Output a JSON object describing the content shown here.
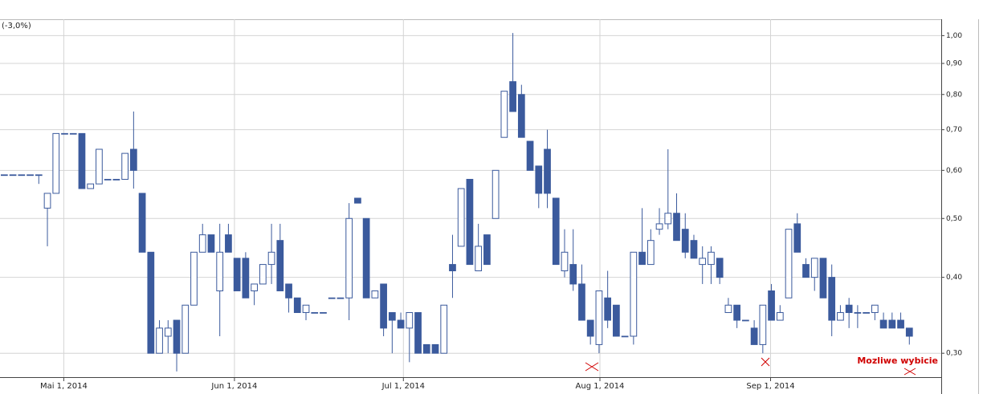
{
  "chart_data": {
    "type": "candlestick",
    "subtitle": "(-3,0%)",
    "annotation": "Mozliwe wybicie",
    "color_up": "#ffffff",
    "color_down": "#3b5a9d",
    "log_scale": true,
    "grid": true,
    "xlim": [
      -0.5,
      108.7
    ],
    "xticks": [
      {
        "value": 6.9,
        "label": "Mai 1, 2014"
      },
      {
        "value": 26.7,
        "label": "Jun 1, 2014"
      },
      {
        "value": 46.3,
        "label": "Jul 1, 2014"
      },
      {
        "value": 69.1,
        "label": "Aug 1, 2014"
      },
      {
        "value": 88.9,
        "label": "Sep 1, 2014"
      }
    ],
    "ylim": [
      0.274,
      1.064
    ],
    "yticks": [
      {
        "value": 0.3,
        "label": "0,30"
      },
      {
        "value": 0.4,
        "label": "0,40"
      },
      {
        "value": 0.5,
        "label": "0,50"
      },
      {
        "value": 0.6,
        "label": "0,60"
      },
      {
        "value": 0.7,
        "label": "0,70"
      },
      {
        "value": 0.8,
        "label": "0,80"
      },
      {
        "value": 0.9,
        "label": "0,90"
      },
      {
        "value": 1.0,
        "label": "1,00"
      }
    ],
    "open": [
      0.59,
      0.59,
      0.59,
      0.59,
      0.59,
      0.52,
      0.55,
      0.69,
      0.69,
      0.69,
      0.56,
      0.57,
      0.58,
      0.58,
      0.58,
      0.65,
      0.55,
      0.44,
      0.3,
      0.32,
      0.34,
      0.3,
      0.36,
      0.44,
      0.47,
      0.38,
      0.47,
      0.43,
      0.43,
      0.38,
      0.39,
      0.42,
      0.46,
      0.39,
      0.37,
      0.35,
      0.35,
      0.35,
      0.37,
      0.37,
      0.37,
      0.54,
      0.5,
      0.37,
      0.39,
      0.35,
      0.34,
      0.33,
      0.35,
      0.31,
      0.31,
      0.3,
      0.42,
      0.45,
      0.58,
      0.41,
      0.47,
      0.5,
      0.68,
      0.84,
      0.8,
      0.67,
      0.61,
      0.65,
      0.54,
      0.41,
      0.42,
      0.39,
      0.34,
      0.31,
      0.37,
      0.36,
      0.32,
      0.32,
      0.44,
      0.42,
      0.48,
      0.49,
      0.51,
      0.48,
      0.46,
      0.42,
      0.42,
      0.43,
      0.35,
      0.36,
      0.34,
      0.33,
      0.31,
      0.38,
      0.34,
      0.37,
      0.49,
      0.42,
      0.4,
      0.43,
      0.4,
      0.34,
      0.36,
      0.35,
      0.35,
      0.35,
      0.34,
      0.34,
      0.34,
      0.33
    ],
    "high": [
      0.59,
      0.59,
      0.59,
      0.59,
      0.59,
      0.55,
      0.69,
      0.69,
      0.69,
      0.69,
      0.57,
      0.65,
      0.58,
      0.58,
      0.64,
      0.75,
      0.55,
      0.44,
      0.34,
      0.34,
      0.34,
      0.36,
      0.44,
      0.49,
      0.47,
      0.49,
      0.49,
      0.43,
      0.44,
      0.39,
      0.42,
      0.49,
      0.49,
      0.39,
      0.37,
      0.36,
      0.35,
      0.35,
      0.37,
      0.37,
      0.53,
      0.54,
      0.5,
      0.38,
      0.39,
      0.35,
      0.35,
      0.35,
      0.35,
      0.31,
      0.31,
      0.36,
      0.47,
      0.56,
      0.58,
      0.49,
      0.47,
      0.6,
      0.81,
      1.01,
      0.83,
      0.67,
      0.61,
      0.7,
      0.54,
      0.48,
      0.48,
      0.42,
      0.34,
      0.38,
      0.41,
      0.36,
      0.32,
      0.44,
      0.52,
      0.48,
      0.52,
      0.65,
      0.55,
      0.51,
      0.47,
      0.45,
      0.45,
      0.43,
      0.37,
      0.36,
      0.34,
      0.34,
      0.36,
      0.39,
      0.36,
      0.48,
      0.51,
      0.43,
      0.43,
      0.43,
      0.42,
      0.36,
      0.37,
      0.36,
      0.35,
      0.36,
      0.35,
      0.35,
      0.35,
      0.33
    ],
    "low": [
      0.59,
      0.59,
      0.59,
      0.59,
      0.57,
      0.45,
      0.55,
      0.69,
      0.69,
      0.56,
      0.56,
      0.57,
      0.58,
      0.58,
      0.58,
      0.56,
      0.44,
      0.3,
      0.3,
      0.3,
      0.28,
      0.3,
      0.36,
      0.44,
      0.44,
      0.32,
      0.44,
      0.38,
      0.37,
      0.36,
      0.39,
      0.39,
      0.38,
      0.35,
      0.35,
      0.34,
      0.35,
      0.35,
      0.37,
      0.37,
      0.34,
      0.53,
      0.37,
      0.37,
      0.32,
      0.3,
      0.33,
      0.29,
      0.3,
      0.3,
      0.3,
      0.3,
      0.37,
      0.45,
      0.42,
      0.41,
      0.42,
      0.5,
      0.68,
      0.75,
      0.68,
      0.6,
      0.52,
      0.52,
      0.42,
      0.4,
      0.38,
      0.34,
      0.31,
      0.3,
      0.33,
      0.32,
      0.32,
      0.31,
      0.42,
      0.42,
      0.47,
      0.48,
      0.46,
      0.43,
      0.43,
      0.39,
      0.39,
      0.39,
      0.35,
      0.33,
      0.34,
      0.31,
      0.3,
      0.34,
      0.34,
      0.37,
      0.44,
      0.4,
      0.38,
      0.37,
      0.32,
      0.34,
      0.33,
      0.33,
      0.35,
      0.34,
      0.33,
      0.33,
      0.33,
      0.31
    ],
    "close": [
      0.59,
      0.59,
      0.59,
      0.59,
      0.59,
      0.55,
      0.69,
      0.69,
      0.69,
      0.56,
      0.57,
      0.65,
      0.58,
      0.58,
      0.64,
      0.6,
      0.44,
      0.3,
      0.33,
      0.33,
      0.3,
      0.36,
      0.44,
      0.47,
      0.44,
      0.44,
      0.44,
      0.38,
      0.37,
      0.39,
      0.42,
      0.44,
      0.38,
      0.37,
      0.35,
      0.36,
      0.35,
      0.35,
      0.37,
      0.37,
      0.5,
      0.53,
      0.37,
      0.38,
      0.33,
      0.34,
      0.33,
      0.35,
      0.3,
      0.3,
      0.3,
      0.36,
      0.41,
      0.56,
      0.42,
      0.45,
      0.42,
      0.6,
      0.81,
      0.75,
      0.68,
      0.6,
      0.55,
      0.55,
      0.42,
      0.44,
      0.39,
      0.34,
      0.32,
      0.38,
      0.34,
      0.32,
      0.32,
      0.44,
      0.42,
      0.46,
      0.49,
      0.51,
      0.46,
      0.44,
      0.43,
      0.43,
      0.44,
      0.4,
      0.36,
      0.34,
      0.34,
      0.31,
      0.36,
      0.34,
      0.35,
      0.48,
      0.44,
      0.4,
      0.43,
      0.37,
      0.34,
      0.35,
      0.35,
      0.35,
      0.35,
      0.36,
      0.33,
      0.33,
      0.33,
      0.32
    ]
  }
}
